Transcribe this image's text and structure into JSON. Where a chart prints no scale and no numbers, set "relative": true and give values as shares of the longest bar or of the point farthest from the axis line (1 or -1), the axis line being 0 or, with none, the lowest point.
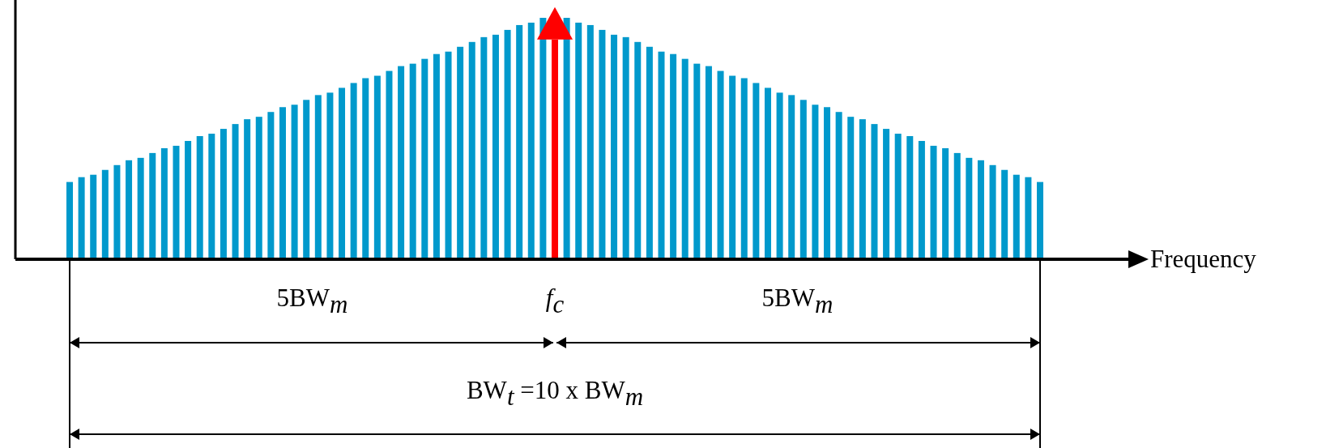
{
  "chart_data": {
    "type": "bar",
    "relative": true,
    "xlabel": "Frequency",
    "categories": [
      null,
      null,
      null,
      null,
      null,
      null,
      null,
      null,
      null,
      null,
      null,
      null,
      null,
      null,
      null,
      null,
      null,
      null,
      null,
      null,
      null,
      null,
      null,
      null,
      null,
      null,
      null,
      null,
      null,
      null,
      null,
      null,
      null,
      null,
      null,
      null,
      null,
      null,
      null,
      null,
      null,
      null,
      null,
      null,
      null,
      null,
      null,
      null,
      null,
      null,
      null,
      null,
      null,
      null,
      null,
      null,
      null,
      null,
      null,
      null,
      null,
      null,
      null,
      null,
      null,
      null,
      null,
      null,
      null,
      null,
      null,
      null,
      null,
      null,
      null,
      null,
      null,
      null,
      null,
      null,
      null,
      null,
      null
    ],
    "values": [
      0.32,
      0.34,
      0.35,
      0.37,
      0.39,
      0.41,
      0.42,
      0.44,
      0.46,
      0.47,
      0.49,
      0.51,
      0.52,
      0.54,
      0.56,
      0.58,
      0.59,
      0.61,
      0.63,
      0.64,
      0.66,
      0.68,
      0.69,
      0.71,
      0.73,
      0.75,
      0.76,
      0.78,
      0.8,
      0.81,
      0.83,
      0.85,
      0.86,
      0.88,
      0.9,
      0.92,
      0.93,
      0.95,
      0.97,
      0.98,
      1.0,
      0.91,
      1.0,
      0.98,
      0.97,
      0.95,
      0.93,
      0.92,
      0.9,
      0.88,
      0.86,
      0.85,
      0.83,
      0.81,
      0.8,
      0.78,
      0.76,
      0.75,
      0.73,
      0.71,
      0.69,
      0.68,
      0.66,
      0.64,
      0.63,
      0.61,
      0.59,
      0.58,
      0.56,
      0.54,
      0.52,
      0.51,
      0.49,
      0.47,
      0.46,
      0.44,
      0.42,
      0.41,
      0.39,
      0.37,
      0.35,
      0.34,
      0.32
    ],
    "colors": [
      "#0099cc",
      "#0099cc",
      "#0099cc",
      "#0099cc",
      "#0099cc",
      "#0099cc",
      "#0099cc",
      "#0099cc",
      "#0099cc",
      "#0099cc",
      "#0099cc",
      "#0099cc",
      "#0099cc",
      "#0099cc",
      "#0099cc",
      "#0099cc",
      "#0099cc",
      "#0099cc",
      "#0099cc",
      "#0099cc",
      "#0099cc",
      "#0099cc",
      "#0099cc",
      "#0099cc",
      "#0099cc",
      "#0099cc",
      "#0099cc",
      "#0099cc",
      "#0099cc",
      "#0099cc",
      "#0099cc",
      "#0099cc",
      "#0099cc",
      "#0099cc",
      "#0099cc",
      "#0099cc",
      "#0099cc",
      "#0099cc",
      "#0099cc",
      "#0099cc",
      "#0099cc",
      "#ff0000",
      "#0099cc",
      "#0099cc",
      "#0099cc",
      "#0099cc",
      "#0099cc",
      "#0099cc",
      "#0099cc",
      "#0099cc",
      "#0099cc",
      "#0099cc",
      "#0099cc",
      "#0099cc",
      "#0099cc",
      "#0099cc",
      "#0099cc",
      "#0099cc",
      "#0099cc",
      "#0099cc",
      "#0099cc",
      "#0099cc",
      "#0099cc",
      "#0099cc",
      "#0099cc",
      "#0099cc",
      "#0099cc",
      "#0099cc",
      "#0099cc",
      "#0099cc",
      "#0099cc",
      "#0099cc",
      "#0099cc",
      "#0099cc",
      "#0099cc",
      "#0099cc",
      "#0099cc",
      "#0099cc",
      "#0099cc",
      "#0099cc",
      "#0099cc",
      "#0099cc",
      "#0099cc"
    ],
    "annotations": [
      "5BW$_{m}$",
      "f$_{c}$",
      "5BW$_{m}$",
      "BW$_{t}$ =10 x BW$_{m}$"
    ]
  }
}
